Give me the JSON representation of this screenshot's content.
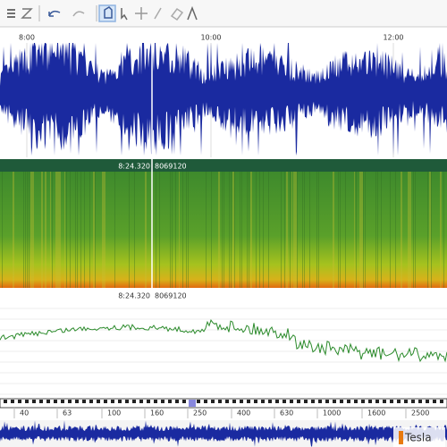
{
  "waveform": {
    "time_labels": [
      "8:00",
      "10:00",
      "12:00"
    ]
  },
  "cursor": {
    "time": "8:24.320",
    "sample": "8069120"
  },
  "spectrum": {
    "frequency_labels": [
      "40",
      "63",
      "100",
      "160",
      "250",
      "400",
      "630",
      "1000",
      "1600",
      "2500"
    ]
  },
  "logo": "Tesla"
}
